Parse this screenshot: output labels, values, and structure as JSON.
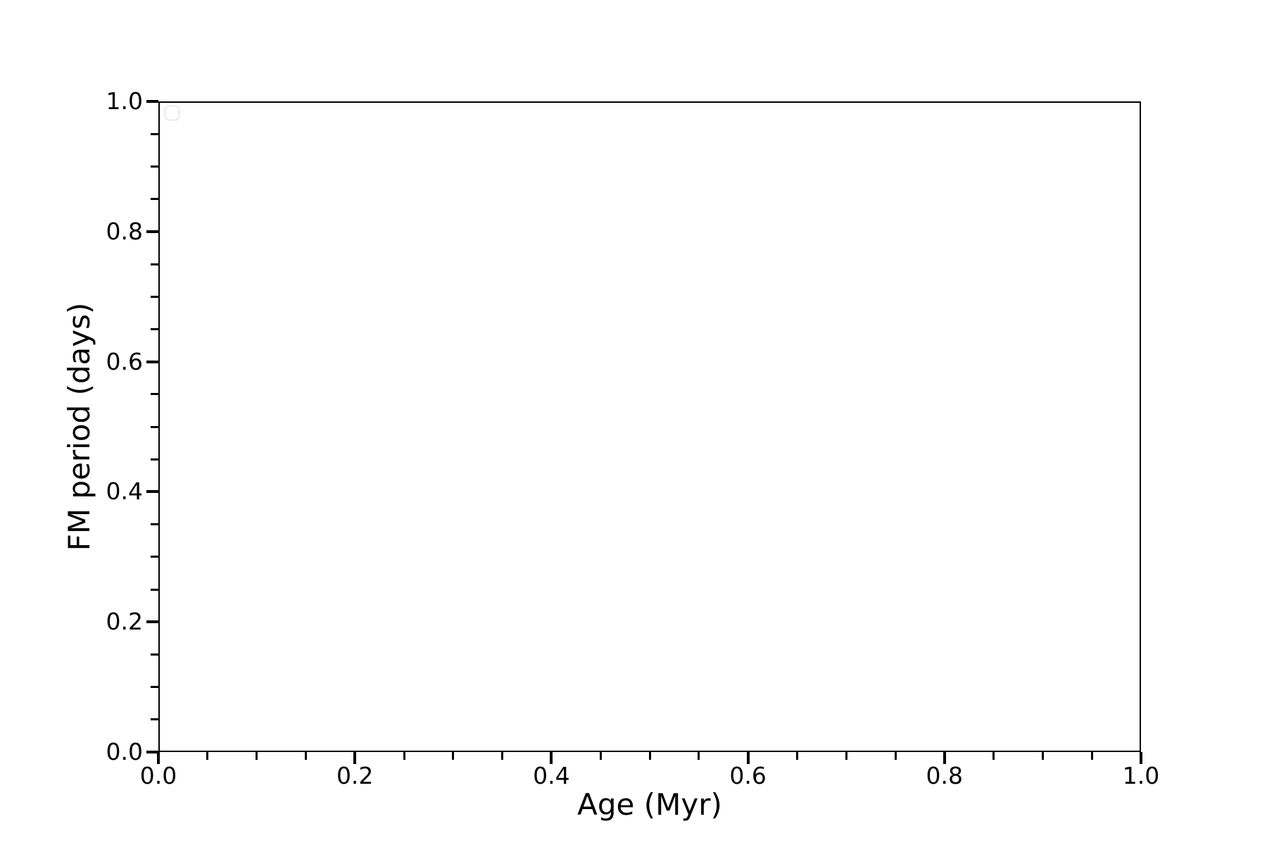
{
  "figure": {
    "background_color": "#ffffff",
    "axis_color": "#000000",
    "text_color": "#000000"
  },
  "chart_data": {
    "type": "scatter",
    "title": "",
    "xlabel": "Age (Myr)",
    "ylabel": "FM period (days)",
    "xlim": [
      0.0,
      1.0
    ],
    "ylim": [
      0.0,
      1.0
    ],
    "x_major_ticks": [
      0.0,
      0.2,
      0.4,
      0.6,
      0.8,
      1.0
    ],
    "x_tick_labels": [
      "0.0",
      "0.2",
      "0.4",
      "0.6",
      "0.8",
      "1.0"
    ],
    "y_major_ticks": [
      0.0,
      0.2,
      0.4,
      0.6,
      0.8,
      1.0
    ],
    "y_tick_labels": [
      "0.0",
      "0.2",
      "0.4",
      "0.6",
      "0.8",
      "1.0"
    ],
    "minor_tick_step": 0.05,
    "grid": false,
    "legend": {
      "visible": true,
      "position": "upper-left",
      "entries": [],
      "border_color": "#d9d9d9"
    },
    "series": []
  }
}
